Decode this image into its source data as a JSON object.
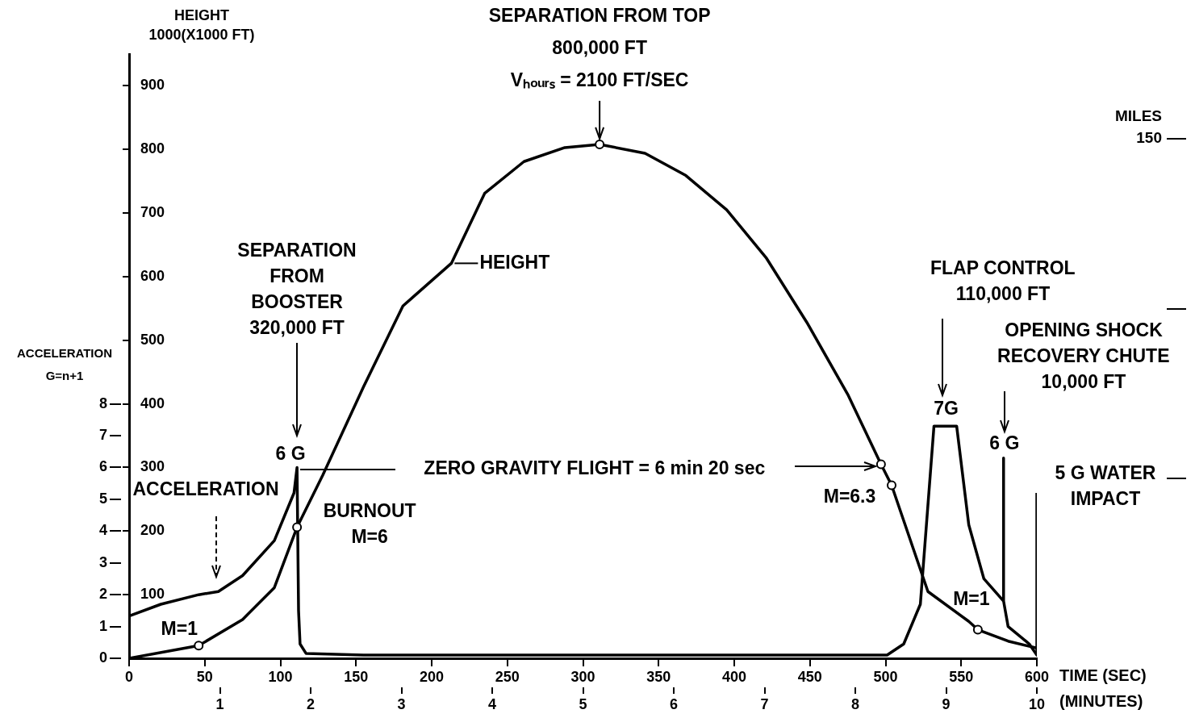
{
  "chart_data": {
    "type": "line",
    "xlabel": "TIME (SEC)",
    "x2label": "(MINUTES)",
    "ylabel": "HEIGHT\n1000(X1000 FT)",
    "y2label": "ACCELERATION\nG=n+1",
    "xlim": [
      0,
      600
    ],
    "xticks": [
      0,
      50,
      100,
      150,
      200,
      250,
      300,
      350,
      400,
      450,
      500,
      550,
      600
    ],
    "x2lim": [
      0,
      10
    ],
    "x2ticks": [
      1,
      2,
      3,
      4,
      5,
      6,
      7,
      8,
      9,
      10
    ],
    "ylim": [
      0,
      950
    ],
    "yticks": [
      100,
      200,
      300,
      400,
      500,
      600,
      700,
      800,
      900
    ],
    "y2lim": [
      0,
      19
    ],
    "y2ticks": [
      0,
      1,
      2,
      3,
      4,
      5,
      6,
      7,
      8
    ],
    "grid": false,
    "series": [
      {
        "type": "line",
        "color": "#000000",
        "marker": "none",
        "x": [
          0,
          46,
          75,
          96,
          111,
          128,
          155,
          181,
          213,
          235,
          261,
          288,
          311,
          341,
          368,
          395,
          421,
          448,
          475,
          497,
          504,
          528,
          555,
          561,
          581,
          600
        ],
        "values": [
          0,
          20,
          61,
          111,
          206,
          288,
          427,
          554,
          621,
          731,
          781,
          803,
          808,
          794,
          759,
          705,
          630,
          528,
          415,
          305,
          272,
          105,
          58,
          45,
          27,
          16
        ]
      },
      {
        "type": "line",
        "axis": "y2",
        "color": "#000000",
        "marker": "none",
        "x": [
          0,
          21,
          46,
          59,
          75,
          96,
          109,
          111,
          112,
          113,
          117,
          155,
          300,
          501,
          512,
          523,
          532,
          547,
          555,
          565,
          578,
          578,
          578,
          581,
          595,
          600,
          600
        ],
        "values": [
          1.33,
          1.7,
          2.0,
          2.1,
          2.6,
          3.7,
          5.2,
          6.0,
          1.5,
          0.45,
          0.15,
          0.1,
          0.1,
          0.1,
          0.45,
          1.7,
          7.3,
          7.3,
          4.2,
          2.5,
          1.8,
          6.3,
          1.8,
          1.0,
          0.45,
          0.1,
          5.2
        ]
      },
      {
        "type": "scatter",
        "color": "#000000",
        "marker": "circle",
        "x": [
          46,
          111,
          311,
          497,
          504,
          561
        ],
        "values": [
          20,
          206,
          808,
          305,
          272,
          45
        ]
      }
    ],
    "annotations": [
      {
        "text": "SEPARATION FROM TOP\n800,000 FT\nVₕₒᵤᵣₛ = 2100 FT/SEC",
        "x": 311,
        "y": 808
      },
      "SEPARATION\nFROM\nBOOSTER\n320,000 FT",
      {
        "text": "6 G",
        "x": 111,
        "y": 300
      },
      "ACCELERATION",
      {
        "text": "HEIGHT",
        "x": 213,
        "y": 621
      },
      {
        "text": "BURNOUT\nM=6",
        "x": 111,
        "y": 206
      },
      "ZERO GRAVITY FLIGHT = 6 min 20 sec",
      {
        "text": "M=6.3",
        "x": 504,
        "y": 272
      },
      {
        "text": "M=1",
        "x": 46,
        "y": 20
      },
      {
        "text": "M=1",
        "x": 561,
        "y": 45
      },
      "FLAP CONTROL\n110,000 FT",
      {
        "text": "7G",
        "x": 532,
        "y": 365
      },
      "OPENING SHOCK\nRECOVERY CHUTE\n10,000 FT",
      {
        "text": "6 G",
        "x": 578,
        "y": 315
      },
      {
        "text": "5 G WATER\nIMPACT",
        "x": 600,
        "y": 260
      },
      "MILES\n150"
    ]
  }
}
